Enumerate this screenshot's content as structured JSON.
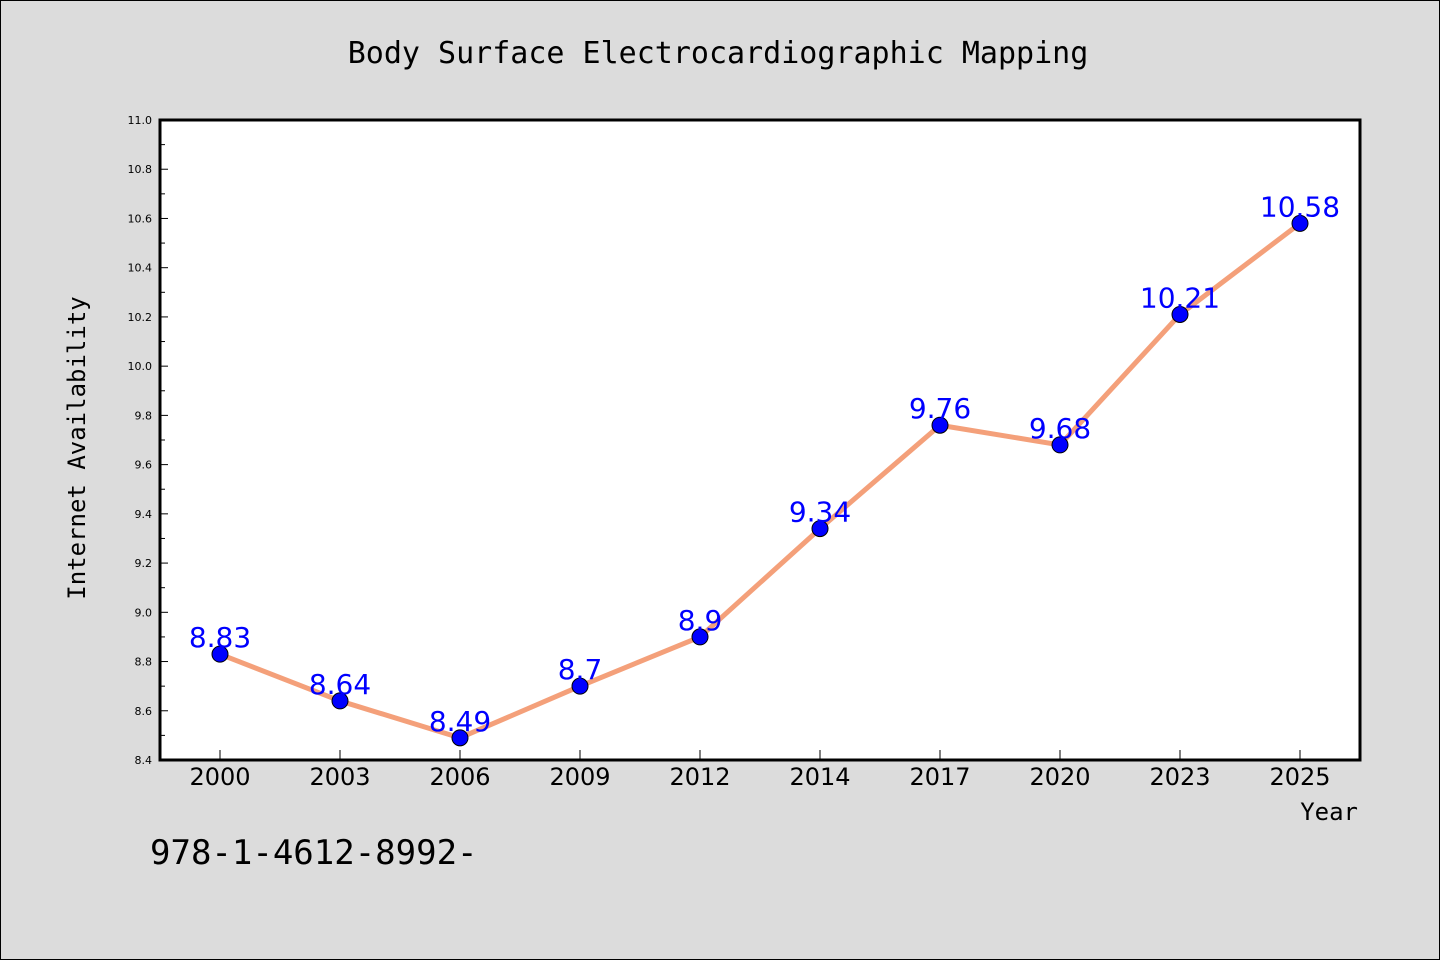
{
  "chart_data": {
    "type": "line",
    "title": "Body Surface Electrocardiographic Mapping",
    "xlabel": "Year",
    "ylabel": "Internet Availability",
    "categories": [
      "2000",
      "2003",
      "2006",
      "2009",
      "2012",
      "2014",
      "2017",
      "2020",
      "2023",
      "2025"
    ],
    "series": [
      {
        "values": [
          8.83,
          8.64,
          8.49,
          8.7,
          8.9,
          9.34,
          9.76,
          9.68,
          10.21,
          10.58
        ],
        "data_labels": [
          "8.83",
          "8.64",
          "8.49",
          "8.7",
          "8.9",
          "9.34",
          "9.76",
          "9.68",
          "10.21",
          "10.58"
        ],
        "line_color": "#f4a07a",
        "marker_color": "#0000ff"
      }
    ],
    "ylim": [
      8.4,
      11.0
    ],
    "yticks": [
      "8.4",
      "8.6",
      "8.8",
      "9.0",
      "9.2",
      "9.4",
      "9.6",
      "9.8",
      "10.0",
      "10.2",
      "10.4",
      "10.6",
      "10.8",
      "11.0"
    ],
    "grid": false,
    "legend": "none",
    "label_color": "#0000ff"
  },
  "footer_text": "978-1-4612-8992-"
}
